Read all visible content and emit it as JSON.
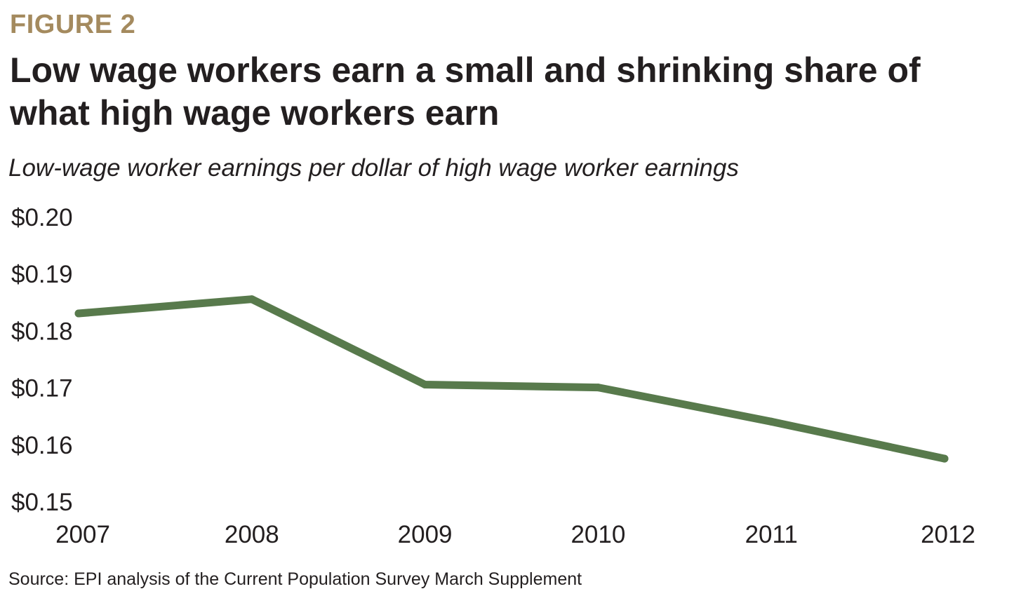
{
  "figure_label": "FIGURE 2",
  "source": "Source: EPI analysis of the Current Population Survey March Supplement",
  "colors": {
    "figure_label": "#a48a5e",
    "line": "#587a4c",
    "text": "#231f20",
    "background": "#ffffff"
  },
  "chart_data": {
    "type": "line",
    "title": "Low wage workers earn a small and shrinking share of what high wage workers earn",
    "subtitle": "Low-wage worker earnings per dollar of high wage worker earnings",
    "xlabel": "",
    "ylabel": "",
    "x": [
      "2007",
      "2008",
      "2009",
      "2010",
      "2011",
      "2012"
    ],
    "series": [
      {
        "values": [
          0.183,
          0.1855,
          0.1705,
          0.17,
          0.164,
          0.1575
        ]
      }
    ],
    "ylim": [
      0.15,
      0.2
    ],
    "yticks": [
      0.2,
      0.19,
      0.18,
      0.17,
      0.16,
      0.15
    ],
    "ytick_labels": [
      "$0.20",
      "$0.19",
      "$0.18",
      "$0.17",
      "$0.16",
      "$0.15"
    ],
    "grid": false,
    "legend": "none"
  }
}
